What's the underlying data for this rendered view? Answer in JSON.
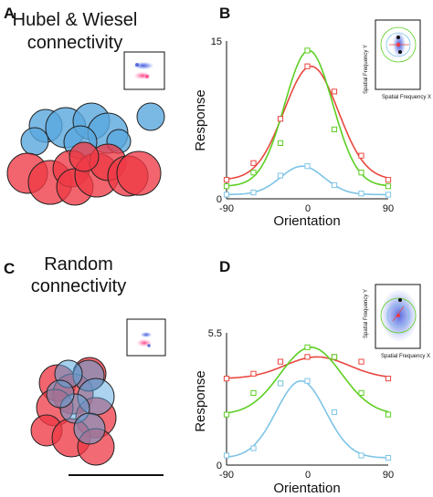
{
  "panels": {
    "A": {
      "letter": "A",
      "title_line1": "Hubel & Wiesel",
      "title_line2": "connectivity"
    },
    "B": {
      "letter": "B"
    },
    "C": {
      "letter": "C",
      "title_line1": "Random",
      "title_line2": "connectivity"
    },
    "D": {
      "letter": "D"
    }
  },
  "insets": {
    "x_label": "Spatial Frequency X",
    "y_label": "Spatial Frequency Y"
  },
  "colors": {
    "red": "#e8473f",
    "green": "#5ccf22",
    "blue": "#7ec4e6",
    "red_fill": "#ee3a45",
    "blue_fill": "#5aa7df"
  },
  "chart_data": [
    {
      "panel": "B",
      "type": "line",
      "xlabel": "Orientation",
      "ylabel": "Response",
      "xlim": [
        -90,
        90
      ],
      "ylim": [
        0,
        15
      ],
      "x_ticks": [
        "-90",
        "0",
        "90"
      ],
      "y_ticks": [
        "0",
        "15"
      ],
      "grid": false,
      "markers": "open squares with fitted Gaussian curves",
      "series": [
        {
          "color": "red",
          "x": [
            -90,
            -60,
            -30,
            0,
            30,
            60,
            90
          ],
          "y": [
            1.8,
            3.4,
            7.6,
            12.6,
            10.2,
            4.1,
            1.8
          ]
        },
        {
          "color": "green",
          "x": [
            -90,
            -60,
            -30,
            0,
            30,
            60,
            90
          ],
          "y": [
            1.2,
            2.5,
            5.3,
            14.1,
            6.6,
            2.5,
            1.2
          ]
        },
        {
          "color": "blue",
          "x": [
            -90,
            -60,
            -30,
            0,
            30,
            60,
            90
          ],
          "y": [
            0.4,
            0.6,
            2.2,
            3.1,
            1.3,
            0.5,
            0.4
          ]
        }
      ]
    },
    {
      "panel": "D",
      "type": "line",
      "xlabel": "Orientation",
      "ylabel": "Response",
      "xlim": [
        -90,
        90
      ],
      "ylim": [
        0,
        5.5
      ],
      "x_ticks": [
        "-90",
        "0",
        "90"
      ],
      "y_ticks": [
        "0",
        "5.5"
      ],
      "grid": false,
      "markers": "open squares with fitted Gaussian curves",
      "series": [
        {
          "color": "red",
          "x": [
            -90,
            -60,
            -30,
            0,
            30,
            60,
            90
          ],
          "y": [
            3.6,
            3.8,
            4.3,
            4.5,
            4.5,
            4.3,
            3.6
          ]
        },
        {
          "color": "green",
          "x": [
            -90,
            -60,
            -30,
            0,
            30,
            60,
            90
          ],
          "y": [
            2.1,
            3.0,
            3.4,
            4.9,
            4.5,
            3.0,
            2.1
          ]
        },
        {
          "color": "blue",
          "x": [
            -90,
            -60,
            -30,
            0,
            30,
            60,
            90
          ],
          "y": [
            0.4,
            0.7,
            3.4,
            3.5,
            2.2,
            0.4,
            0.3
          ]
        }
      ]
    }
  ]
}
